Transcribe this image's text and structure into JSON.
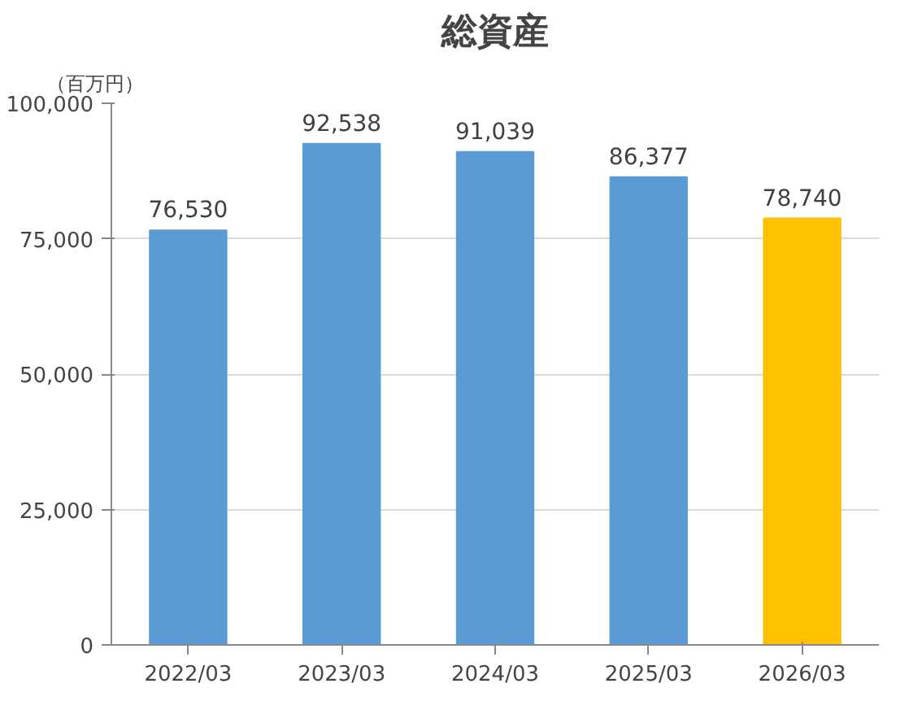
{
  "chart_data": {
    "type": "bar",
    "title": "総資産",
    "ylabel": "（百万円）",
    "categories": [
      "2022/03",
      "2023/03",
      "2024/03",
      "2025/03",
      "2026/03"
    ],
    "values": [
      76530,
      92538,
      91039,
      86377,
      78740
    ],
    "colors": [
      "#5b9bd5",
      "#5b9bd5",
      "#5b9bd5",
      "#5b9bd5",
      "#ffc000"
    ],
    "ylim": [
      0,
      100000
    ],
    "yticks": [
      0,
      {
        "value": 25000,
        "label": "25,000"
      },
      {
        "value": 50000,
        "label": "50,000"
      },
      {
        "value": 75000,
        "label": "75,000"
      },
      {
        "value": 100000,
        "label": "100,000"
      }
    ],
    "value_labels": [
      "76,530",
      "92,538",
      "91,039",
      "86,377",
      "78,740"
    ],
    "grid": "y"
  }
}
